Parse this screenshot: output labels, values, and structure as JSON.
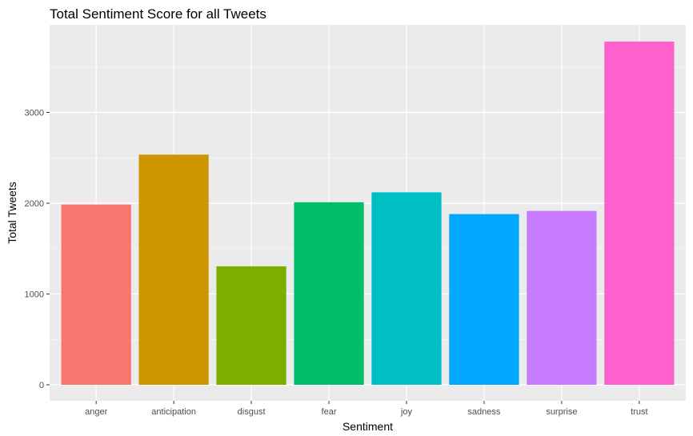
{
  "chart_data": {
    "type": "bar",
    "title": "Total Sentiment Score for all Tweets",
    "xlabel": "Sentiment",
    "ylabel": "Total Tweets",
    "categories": [
      "anger",
      "anticipation",
      "disgust",
      "fear",
      "joy",
      "sadness",
      "surprise",
      "trust"
    ],
    "values": [
      1985,
      2535,
      1305,
      2010,
      2120,
      1880,
      1915,
      3780
    ],
    "colors": [
      "#F8766D",
      "#CD9600",
      "#7CAE00",
      "#00BE67",
      "#00BFC4",
      "#00A9FF",
      "#C77CFF",
      "#FF61CC"
    ],
    "yticks": [
      0,
      1000,
      2000,
      3000
    ],
    "ylim": [
      0,
      3960
    ],
    "grid": true,
    "legend": "none",
    "panel_background": "#EBEBEB",
    "gridline_color": "#FFFFFF"
  }
}
